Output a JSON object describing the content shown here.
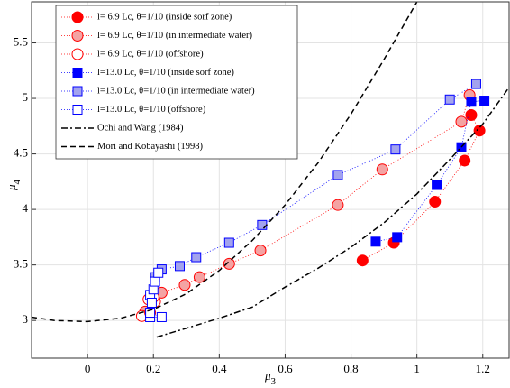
{
  "chart_data": {
    "type": "scatter",
    "xlabel": "μ",
    "xlabel_sub": "3",
    "ylabel": "μ",
    "ylabel_sub": "4",
    "xlim": [
      -0.17,
      1.28
    ],
    "ylim": [
      2.66,
      5.87
    ],
    "xticks": [
      0,
      0.2,
      0.4,
      0.6,
      0.8,
      1,
      1.2
    ],
    "yticks": [
      3,
      3.5,
      4,
      4.5,
      5,
      5.5
    ],
    "grid": true,
    "legend": "upper left",
    "series": [
      {
        "name": "l= 6.9 Lc, θ=1/10 (inside sorf zone)",
        "marker": "circle",
        "color": "#ff0000",
        "face": "#ff0000",
        "x": [
          0.835,
          0.93,
          1.055,
          1.145,
          1.19,
          1.165
        ],
        "values": [
          3.54,
          3.7,
          4.07,
          4.44,
          4.71,
          4.85
        ]
      },
      {
        "name": "l= 6.9 Lc, θ=1/10 (in intermediate water)",
        "marker": "circle",
        "color": "#ff0000",
        "face": "#f4a3a3",
        "x": [
          0.175,
          0.225,
          0.295,
          0.34,
          0.43,
          0.525,
          0.76,
          0.895,
          1.135,
          1.16
        ],
        "values": [
          3.08,
          3.25,
          3.32,
          3.39,
          3.51,
          3.63,
          4.04,
          4.36,
          4.79,
          5.03
        ]
      },
      {
        "name": "l= 6.9 Lc, θ=1/10 (offshore)",
        "marker": "circle",
        "color": "#ff0000",
        "face": "#ffffff",
        "x": [
          0.165,
          0.19,
          0.205,
          0.2,
          0.185
        ],
        "values": [
          3.04,
          3.07,
          3.17,
          3.21,
          3.19
        ]
      },
      {
        "name": "l=13.0 Lc, θ=1/10 (inside sorf zone)",
        "marker": "square",
        "color": "#0000ff",
        "face": "#0000ff",
        "x": [
          0.875,
          0.94,
          1.06,
          1.135,
          1.165,
          1.205
        ],
        "values": [
          3.71,
          3.75,
          4.22,
          4.56,
          4.97,
          4.98
        ]
      },
      {
        "name": "l=13.0 Lc, θ=1/10 (in intermediate water)",
        "marker": "square",
        "color": "#0000ff",
        "face": "#a3a3ee",
        "x": [
          0.205,
          0.225,
          0.28,
          0.33,
          0.43,
          0.53,
          0.76,
          0.935,
          1.1,
          1.18
        ],
        "values": [
          3.39,
          3.46,
          3.49,
          3.57,
          3.7,
          3.86,
          4.31,
          4.54,
          4.99,
          5.13
        ]
      },
      {
        "name": "l=13.0 Lc, θ=1/10 (offshore)",
        "marker": "square",
        "color": "#0000ff",
        "face": "#ffffff",
        "x": [
          0.19,
          0.225,
          0.19,
          0.19,
          0.195,
          0.2,
          0.205,
          0.215
        ],
        "values": [
          3.03,
          3.03,
          3.07,
          3.23,
          3.16,
          3.28,
          3.35,
          3.43
        ]
      },
      {
        "name": "Ochi and Wang (1984)",
        "marker": "none",
        "line": "dashdot",
        "color": "#000000",
        "x": [
          0.21,
          0.3,
          0.4,
          0.5,
          0.6,
          0.7,
          0.8,
          0.9,
          1.0,
          1.1,
          1.2,
          1.28
        ],
        "values": [
          2.85,
          2.93,
          3.02,
          3.12,
          3.3,
          3.47,
          3.66,
          3.88,
          4.14,
          4.45,
          4.77,
          5.1
        ]
      },
      {
        "name": "Mori and Kobayashi (1998)",
        "marker": "none",
        "line": "dashed",
        "color": "#000000",
        "x": [
          -0.17,
          -0.1,
          0,
          0.1,
          0.2,
          0.3,
          0.4,
          0.5,
          0.6,
          0.7,
          0.8,
          0.9,
          1.0
        ],
        "values": [
          3.03,
          3.0,
          2.99,
          3.02,
          3.1,
          3.24,
          3.45,
          3.72,
          4.04,
          4.42,
          4.86,
          5.35,
          5.87
        ]
      }
    ]
  }
}
